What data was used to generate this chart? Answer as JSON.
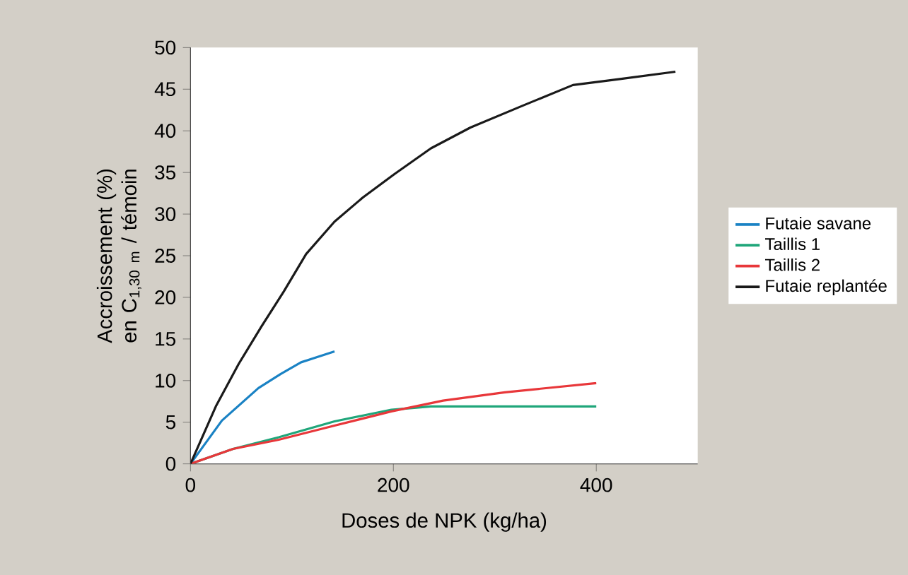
{
  "chart_data": {
    "type": "line",
    "xlabel": "Doses de NPK (kg/ha)",
    "ylabel": "Accroissement (%) en C$_{1,30 m}$ / témoin",
    "xlim": [
      0,
      500
    ],
    "ylim": [
      0,
      50
    ],
    "xticks": [
      0,
      200,
      400
    ],
    "yticks": [
      0,
      5,
      10,
      15,
      20,
      25,
      30,
      35,
      40,
      45,
      50
    ],
    "legend": "right",
    "grid": false,
    "marker": "none",
    "line_style": "solid",
    "series": [
      {
        "name": "Futaie savane",
        "color": "#1a82c4",
        "x": [
          0,
          31,
          67,
          89,
          109,
          142
        ],
        "values": [
          0,
          5.2,
          9.1,
          10.8,
          12.2,
          13.5
        ]
      },
      {
        "name": "Taillis 1",
        "color": "#1fa67a",
        "x": [
          0,
          42,
          87,
          142,
          198,
          237,
          400
        ],
        "values": [
          0,
          1.8,
          3.2,
          5.1,
          6.5,
          6.9,
          6.9
        ]
      },
      {
        "name": "Taillis 2",
        "color": "#e8373a",
        "x": [
          0,
          42,
          87,
          142,
          198,
          249,
          310,
          400
        ],
        "values": [
          0,
          1.8,
          2.9,
          4.6,
          6.3,
          7.6,
          8.6,
          9.7
        ]
      },
      {
        "name": "Futaie replantée",
        "color": "#1a1a1a",
        "x": [
          0,
          25,
          47.5,
          70,
          92,
          114,
          142,
          170,
          201,
          237,
          276,
          327,
          377,
          422,
          478
        ],
        "values": [
          0,
          6.9,
          12,
          16.5,
          20.7,
          25.2,
          29.1,
          32,
          34.8,
          37.9,
          40.4,
          43,
          45.5,
          46.2,
          47.1
        ]
      }
    ]
  }
}
